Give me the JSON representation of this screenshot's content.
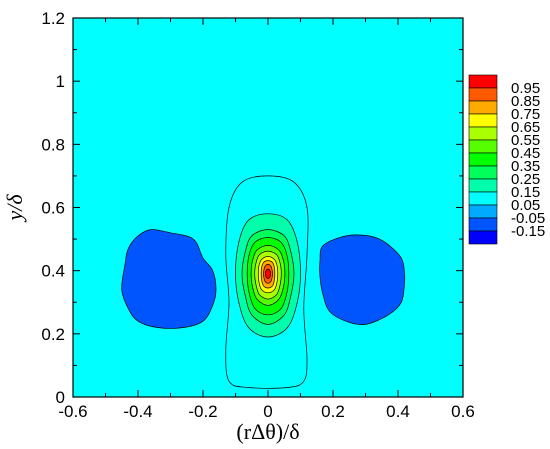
{
  "chart_data": {
    "type": "heatmap",
    "title": "",
    "xlabel": "(rΔθ)/δ",
    "ylabel": "y/δ",
    "xlim": [
      -0.6,
      0.6
    ],
    "ylim": [
      0,
      1.2
    ],
    "xticks": [
      "-0.6",
      "-0.4",
      "-0.2",
      "0",
      "0.2",
      "0.4",
      "0.6"
    ],
    "xtick_values": [
      -0.6,
      -0.4,
      -0.2,
      0,
      0.2,
      0.4,
      0.6
    ],
    "yticks": [
      "0",
      "0.2",
      "0.4",
      "0.6",
      "0.8",
      "1",
      "1.2"
    ],
    "ytick_values": [
      0,
      0.2,
      0.4,
      0.6,
      0.8,
      1.0,
      1.2
    ],
    "background_level": 0.0,
    "legend": {
      "placement": "right",
      "levels": [
        {
          "label": "0.95",
          "color": "#ff0000"
        },
        {
          "label": "0.85",
          "color": "#ff5a00"
        },
        {
          "label": "0.75",
          "color": "#ffaa00"
        },
        {
          "label": "0.65",
          "color": "#ffff00"
        },
        {
          "label": "0.55",
          "color": "#aaff00"
        },
        {
          "label": "0.45",
          "color": "#55ff00"
        },
        {
          "label": "0.35",
          "color": "#00ff00"
        },
        {
          "label": "0.25",
          "color": "#00ff5a"
        },
        {
          "label": "0.15",
          "color": "#00ffaa"
        },
        {
          "label": "0.05",
          "color": "#00ffff"
        },
        {
          "label": "-0.05",
          "color": "#00aaff"
        },
        {
          "label": "-0.15",
          "color": "#0055ff"
        },
        {
          "label": "",
          "color": "#0000ff"
        }
      ]
    },
    "features": [
      {
        "kind": "peak",
        "center": [
          0.0,
          0.39
        ],
        "value": 1.0
      },
      {
        "kind": "trough",
        "center": [
          -0.27,
          0.38
        ],
        "value": -0.08
      },
      {
        "kind": "trough",
        "center": [
          0.28,
          0.37
        ],
        "value": -0.08
      }
    ],
    "contours": [
      {
        "level": 0.05,
        "color": "#00ffff",
        "points": [
          [
            -0.12,
            0.05
          ],
          [
            -0.06,
            0.03
          ],
          [
            0.06,
            0.03
          ],
          [
            0.11,
            0.05
          ],
          [
            0.12,
            0.12
          ],
          [
            0.11,
            0.28
          ],
          [
            0.12,
            0.45
          ],
          [
            0.12,
            0.6
          ],
          [
            0.08,
            0.68
          ],
          [
            0.0,
            0.7
          ],
          [
            -0.08,
            0.68
          ],
          [
            -0.12,
            0.6
          ],
          [
            -0.13,
            0.45
          ],
          [
            -0.12,
            0.3
          ],
          [
            -0.13,
            0.15
          ]
        ]
      },
      {
        "level": 0.15,
        "color": "#00ffaa",
        "points": [
          [
            0.0,
            0.19
          ],
          [
            0.06,
            0.22
          ],
          [
            0.09,
            0.3
          ],
          [
            0.1,
            0.39
          ],
          [
            0.09,
            0.49
          ],
          [
            0.06,
            0.56
          ],
          [
            0.0,
            0.58
          ],
          [
            -0.06,
            0.56
          ],
          [
            -0.09,
            0.49
          ],
          [
            -0.1,
            0.39
          ],
          [
            -0.09,
            0.3
          ],
          [
            -0.06,
            0.22
          ]
        ]
      },
      {
        "level": 0.25,
        "color": "#00ff5a",
        "points": [
          [
            0.0,
            0.23
          ],
          [
            0.05,
            0.26
          ],
          [
            0.07,
            0.32
          ],
          [
            0.08,
            0.39
          ],
          [
            0.07,
            0.46
          ],
          [
            0.05,
            0.51
          ],
          [
            0.0,
            0.53
          ],
          [
            -0.05,
            0.51
          ],
          [
            -0.07,
            0.46
          ],
          [
            -0.08,
            0.39
          ],
          [
            -0.07,
            0.32
          ],
          [
            -0.05,
            0.26
          ]
        ]
      },
      {
        "level": 0.35,
        "color": "#00ff00",
        "points": [
          [
            0.0,
            0.26
          ],
          [
            0.04,
            0.28
          ],
          [
            0.058,
            0.33
          ],
          [
            0.064,
            0.39
          ],
          [
            0.058,
            0.45
          ],
          [
            0.04,
            0.49
          ],
          [
            0.0,
            0.505
          ],
          [
            -0.04,
            0.49
          ],
          [
            -0.058,
            0.45
          ],
          [
            -0.064,
            0.39
          ],
          [
            -0.058,
            0.33
          ],
          [
            -0.04,
            0.28
          ]
        ]
      },
      {
        "level": 0.45,
        "color": "#55ff00",
        "points": [
          [
            0.0,
            0.29
          ],
          [
            0.034,
            0.31
          ],
          [
            0.048,
            0.35
          ],
          [
            0.052,
            0.39
          ],
          [
            0.048,
            0.43
          ],
          [
            0.034,
            0.465
          ],
          [
            0.0,
            0.48
          ],
          [
            -0.034,
            0.465
          ],
          [
            -0.048,
            0.43
          ],
          [
            -0.052,
            0.39
          ],
          [
            -0.048,
            0.35
          ],
          [
            -0.034,
            0.31
          ]
        ]
      },
      {
        "level": 0.55,
        "color": "#aaff00",
        "points": [
          [
            0.0,
            0.31
          ],
          [
            0.027,
            0.325
          ],
          [
            0.038,
            0.36
          ],
          [
            0.041,
            0.39
          ],
          [
            0.038,
            0.42
          ],
          [
            0.027,
            0.45
          ],
          [
            0.0,
            0.462
          ],
          [
            -0.027,
            0.45
          ],
          [
            -0.038,
            0.42
          ],
          [
            -0.041,
            0.39
          ],
          [
            -0.038,
            0.36
          ],
          [
            -0.027,
            0.325
          ]
        ]
      },
      {
        "level": 0.65,
        "color": "#ffff00",
        "points": [
          [
            0.0,
            0.33
          ],
          [
            0.02,
            0.34
          ],
          [
            0.028,
            0.365
          ],
          [
            0.03,
            0.39
          ],
          [
            0.028,
            0.415
          ],
          [
            0.02,
            0.435
          ],
          [
            0.0,
            0.445
          ],
          [
            -0.02,
            0.435
          ],
          [
            -0.028,
            0.415
          ],
          [
            -0.03,
            0.39
          ],
          [
            -0.028,
            0.365
          ],
          [
            -0.02,
            0.34
          ]
        ]
      },
      {
        "level": 0.75,
        "color": "#ffaa00",
        "points": [
          [
            0.0,
            0.345
          ],
          [
            0.014,
            0.352
          ],
          [
            0.02,
            0.372
          ],
          [
            0.021,
            0.39
          ],
          [
            0.02,
            0.408
          ],
          [
            0.014,
            0.426
          ],
          [
            0.0,
            0.432
          ],
          [
            -0.014,
            0.426
          ],
          [
            -0.02,
            0.408
          ],
          [
            -0.021,
            0.39
          ],
          [
            -0.02,
            0.372
          ],
          [
            -0.014,
            0.352
          ]
        ]
      },
      {
        "level": 0.85,
        "color": "#ff5a00",
        "points": [
          [
            0.0,
            0.36
          ],
          [
            0.009,
            0.366
          ],
          [
            0.013,
            0.38
          ],
          [
            0.014,
            0.39
          ],
          [
            0.013,
            0.4
          ],
          [
            0.009,
            0.414
          ],
          [
            0.0,
            0.42
          ],
          [
            -0.009,
            0.414
          ],
          [
            -0.013,
            0.4
          ],
          [
            -0.014,
            0.39
          ],
          [
            -0.013,
            0.38
          ],
          [
            -0.009,
            0.366
          ]
        ]
      },
      {
        "level": 0.95,
        "color": "#ff0000",
        "points": [
          [
            0.0,
            0.375
          ],
          [
            0.006,
            0.38
          ],
          [
            0.008,
            0.39
          ],
          [
            0.006,
            0.4
          ],
          [
            0.0,
            0.405
          ],
          [
            -0.006,
            0.4
          ],
          [
            -0.008,
            0.39
          ],
          [
            -0.006,
            0.38
          ]
        ]
      },
      {
        "level": -0.05,
        "color": "#0055ff",
        "points": [
          [
            -0.4,
            0.51
          ],
          [
            -0.36,
            0.53
          ],
          [
            -0.3,
            0.52
          ],
          [
            -0.23,
            0.5
          ],
          [
            -0.2,
            0.44
          ],
          [
            -0.17,
            0.4
          ],
          [
            -0.16,
            0.34
          ],
          [
            -0.17,
            0.29
          ],
          [
            -0.2,
            0.24
          ],
          [
            -0.26,
            0.22
          ],
          [
            -0.34,
            0.22
          ],
          [
            -0.4,
            0.24
          ],
          [
            -0.43,
            0.28
          ],
          [
            -0.45,
            0.34
          ],
          [
            -0.44,
            0.42
          ],
          [
            -0.43,
            0.47
          ]
        ]
      },
      {
        "level": -0.05,
        "color": "#0055ff",
        "points": [
          [
            0.17,
            0.48
          ],
          [
            0.24,
            0.51
          ],
          [
            0.31,
            0.51
          ],
          [
            0.36,
            0.49
          ],
          [
            0.41,
            0.44
          ],
          [
            0.42,
            0.39
          ],
          [
            0.42,
            0.36
          ],
          [
            0.41,
            0.3
          ],
          [
            0.37,
            0.26
          ],
          [
            0.3,
            0.23
          ],
          [
            0.24,
            0.24
          ],
          [
            0.19,
            0.27
          ],
          [
            0.17,
            0.32
          ],
          [
            0.16,
            0.38
          ],
          [
            0.16,
            0.43
          ]
        ]
      }
    ]
  }
}
